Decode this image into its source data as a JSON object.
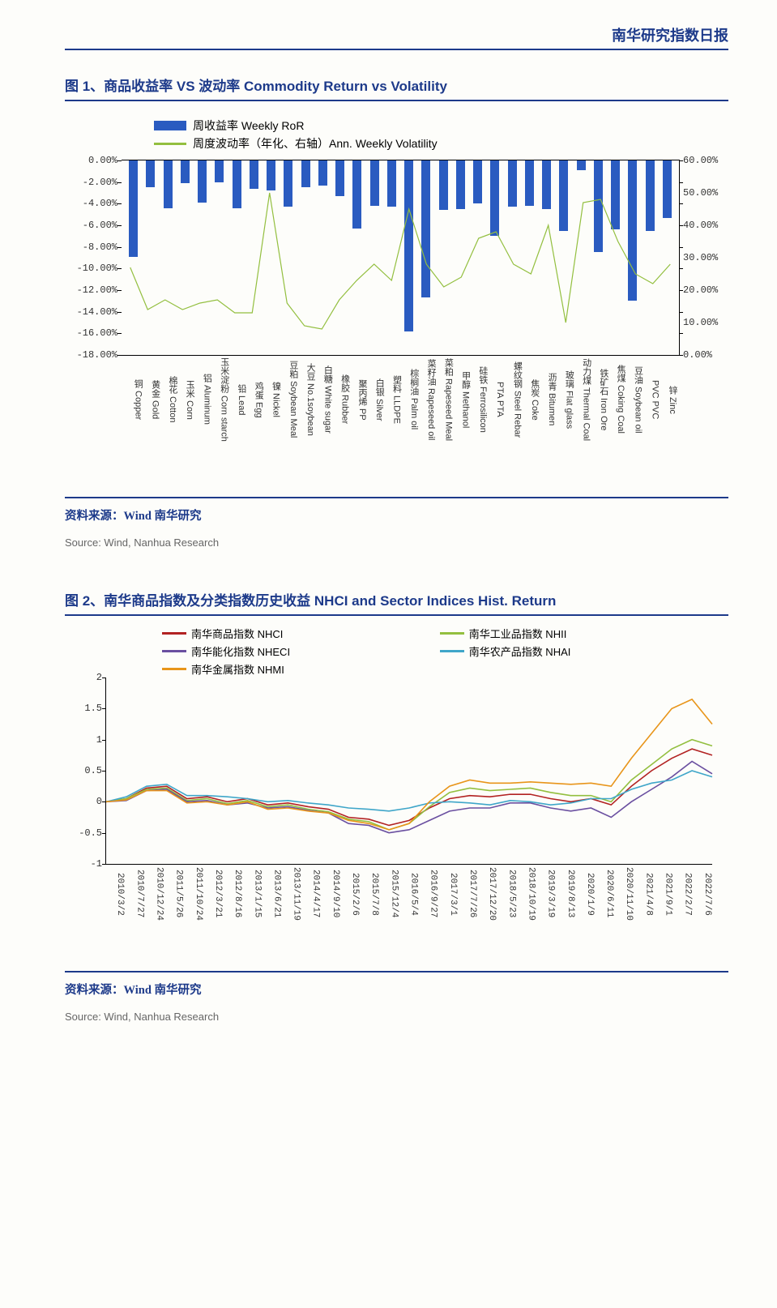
{
  "header": {
    "title": "南华研究指数日报"
  },
  "chart1": {
    "title": "图 1、商品收益率 VS 波动率  Commodity Return vs Volatility",
    "type": "bar+line",
    "legend_bar": "周收益率 Weekly RoR",
    "legend_line": "周度波动率（年化、右轴）Ann. Weekly Volatility",
    "bar_color": "#2a5bc0",
    "line_color": "#93bf3f",
    "left_axis": {
      "min": -18,
      "max": 0,
      "step": 2,
      "suffix": "%",
      "format_width": 7
    },
    "right_axis": {
      "min": 0,
      "max": 60,
      "step": 10,
      "suffix": "%",
      "format_width": 6
    },
    "categories": [
      {
        "cn": "铜",
        "en": "Copper",
        "ror": -8.9,
        "vol": 27
      },
      {
        "cn": "黄金",
        "en": "Gold",
        "ror": -2.5,
        "vol": 14
      },
      {
        "cn": "棉花",
        "en": "Cotton",
        "ror": -4.4,
        "vol": 17
      },
      {
        "cn": "玉米",
        "en": "Corn",
        "ror": -2.1,
        "vol": 14
      },
      {
        "cn": "铝",
        "en": "Aluminum",
        "ror": -3.9,
        "vol": 16
      },
      {
        "cn": "玉米淀粉",
        "en": "Corn starch",
        "ror": -2.0,
        "vol": 17
      },
      {
        "cn": "铅",
        "en": "Lead",
        "ror": -4.4,
        "vol": 13
      },
      {
        "cn": "鸡蛋",
        "en": "Egg",
        "ror": -2.6,
        "vol": 13
      },
      {
        "cn": "镍",
        "en": "Nickel",
        "ror": -2.8,
        "vol": 50
      },
      {
        "cn": "豆粕",
        "en": "Soybean Meal",
        "ror": -4.3,
        "vol": 16
      },
      {
        "cn": "大豆",
        "en": "No.1soybean",
        "ror": -2.5,
        "vol": 9
      },
      {
        "cn": "白糖",
        "en": "White sugar",
        "ror": -2.3,
        "vol": 8
      },
      {
        "cn": "橡胶",
        "en": "Rubber",
        "ror": -3.3,
        "vol": 17
      },
      {
        "cn": "聚丙烯",
        "en": "PP",
        "ror": -6.3,
        "vol": 23
      },
      {
        "cn": "白银",
        "en": "Silver",
        "ror": -4.2,
        "vol": 28
      },
      {
        "cn": "塑料",
        "en": "LLDPE",
        "ror": -4.3,
        "vol": 23
      },
      {
        "cn": "棕榈油",
        "en": "Palm oil",
        "ror": -15.8,
        "vol": 45
      },
      {
        "cn": "菜籽油",
        "en": "Rapeseed oil",
        "ror": -12.7,
        "vol": 28
      },
      {
        "cn": "菜粕",
        "en": "Rapeseed Meal",
        "ror": -4.6,
        "vol": 21
      },
      {
        "cn": "甲醇",
        "en": "Methanol",
        "ror": -4.5,
        "vol": 24
      },
      {
        "cn": "硅铁",
        "en": "Ferrosilicon",
        "ror": -4.0,
        "vol": 36
      },
      {
        "cn": "PTA",
        "en": "PTA",
        "ror": -7.0,
        "vol": 38
      },
      {
        "cn": "螺纹钢",
        "en": "Steel Rebar",
        "ror": -4.3,
        "vol": 28
      },
      {
        "cn": "焦炭",
        "en": "Coke",
        "ror": -4.2,
        "vol": 25
      },
      {
        "cn": "沥青",
        "en": "Bitumen",
        "ror": -4.5,
        "vol": 40
      },
      {
        "cn": "玻璃",
        "en": "Flat glass",
        "ror": -6.5,
        "vol": 10
      },
      {
        "cn": "动力煤",
        "en": "Thermal Coal",
        "ror": -0.9,
        "vol": 47
      },
      {
        "cn": "铁矿石",
        "en": "Iron Ore",
        "ror": -8.5,
        "vol": 48
      },
      {
        "cn": "焦煤",
        "en": "Coking Coal",
        "ror": -6.4,
        "vol": 35
      },
      {
        "cn": "豆油",
        "en": "Soybean oil",
        "ror": -13.0,
        "vol": 25
      },
      {
        "cn": "PVC",
        "en": "PVC",
        "ror": -6.5,
        "vol": 22
      },
      {
        "cn": "锌",
        "en": "Zinc",
        "ror": -5.3,
        "vol": 28
      }
    ],
    "source_zh": "资料来源：Wind 南华研究",
    "source_en": "Source: Wind, Nanhua Research"
  },
  "chart2": {
    "title": "图 2、南华商品指数及分类指数历史收益  NHCI and Sector Indices Hist. Return",
    "type": "line",
    "y_axis": {
      "min": -1,
      "max": 2,
      "step": 0.5
    },
    "series": [
      {
        "name": "南华商品指数 NHCI",
        "color": "#b22222",
        "pos": "L"
      },
      {
        "name": "南华工业品指数 NHII",
        "color": "#93bf3f",
        "pos": "R"
      },
      {
        "name": "南华能化指数 NHECI",
        "color": "#6a4fa0",
        "pos": "L"
      },
      {
        "name": "南华农产品指数 NHAI",
        "color": "#3fa6c9",
        "pos": "R"
      },
      {
        "name": "南华金属指数 NHMI",
        "color": "#e8951a",
        "pos": "L"
      }
    ],
    "x_labels": [
      "2010/3/2",
      "2010/7/27",
      "2010/12/24",
      "2011/5/26",
      "2011/10/24",
      "2012/3/21",
      "2012/8/16",
      "2013/1/15",
      "2013/6/21",
      "2013/11/19",
      "2014/4/17",
      "2014/9/10",
      "2015/2/6",
      "2015/7/8",
      "2015/12/4",
      "2016/5/4",
      "2016/9/27",
      "2017/3/1",
      "2017/7/26",
      "2017/12/20",
      "2018/5/23",
      "2018/10/19",
      "2019/3/19",
      "2019/8/13",
      "2020/1/9",
      "2020/6/11",
      "2020/11/10",
      "2021/4/8",
      "2021/9/1",
      "2022/2/7",
      "2022/7/6"
    ],
    "data": {
      "NHCI": [
        0.0,
        0.05,
        0.22,
        0.25,
        0.05,
        0.08,
        0.0,
        0.05,
        -0.05,
        -0.02,
        -0.08,
        -0.12,
        -0.25,
        -0.28,
        -0.38,
        -0.3,
        -0.1,
        0.05,
        0.1,
        0.08,
        0.12,
        0.12,
        0.05,
        0.0,
        0.05,
        -0.05,
        0.25,
        0.5,
        0.7,
        0.85,
        0.75
      ],
      "NHII": [
        0.0,
        0.05,
        0.2,
        0.22,
        0.02,
        0.05,
        -0.03,
        0.02,
        -0.08,
        -0.05,
        -0.12,
        -0.16,
        -0.28,
        -0.32,
        -0.45,
        -0.35,
        -0.08,
        0.15,
        0.22,
        0.18,
        0.2,
        0.22,
        0.15,
        0.1,
        0.1,
        0.0,
        0.35,
        0.6,
        0.85,
        1.0,
        0.9
      ],
      "NHECI": [
        0.0,
        0.02,
        0.18,
        0.2,
        0.0,
        0.02,
        -0.05,
        -0.02,
        -0.1,
        -0.08,
        -0.14,
        -0.18,
        -0.35,
        -0.38,
        -0.5,
        -0.45,
        -0.3,
        -0.15,
        -0.1,
        -0.1,
        -0.02,
        -0.02,
        -0.1,
        -0.15,
        -0.1,
        -0.25,
        0.0,
        0.2,
        0.4,
        0.65,
        0.45
      ],
      "NHAI": [
        0.0,
        0.08,
        0.25,
        0.28,
        0.1,
        0.1,
        0.08,
        0.05,
        0.0,
        0.02,
        -0.02,
        -0.05,
        -0.1,
        -0.12,
        -0.15,
        -0.1,
        -0.02,
        0.0,
        -0.02,
        -0.05,
        0.02,
        0.0,
        -0.05,
        -0.02,
        0.05,
        0.05,
        0.2,
        0.3,
        0.35,
        0.5,
        0.4
      ],
      "NHMI": [
        0.0,
        0.03,
        0.18,
        0.18,
        -0.02,
        0.0,
        -0.05,
        0.0,
        -0.12,
        -0.1,
        -0.15,
        -0.18,
        -0.3,
        -0.35,
        -0.45,
        -0.35,
        0.0,
        0.25,
        0.35,
        0.3,
        0.3,
        0.32,
        0.3,
        0.28,
        0.3,
        0.25,
        0.7,
        1.1,
        1.5,
        1.65,
        1.25
      ]
    },
    "source_zh": "资料来源：Wind 南华研究",
    "source_en": "Source: Wind, Nanhua Research"
  }
}
